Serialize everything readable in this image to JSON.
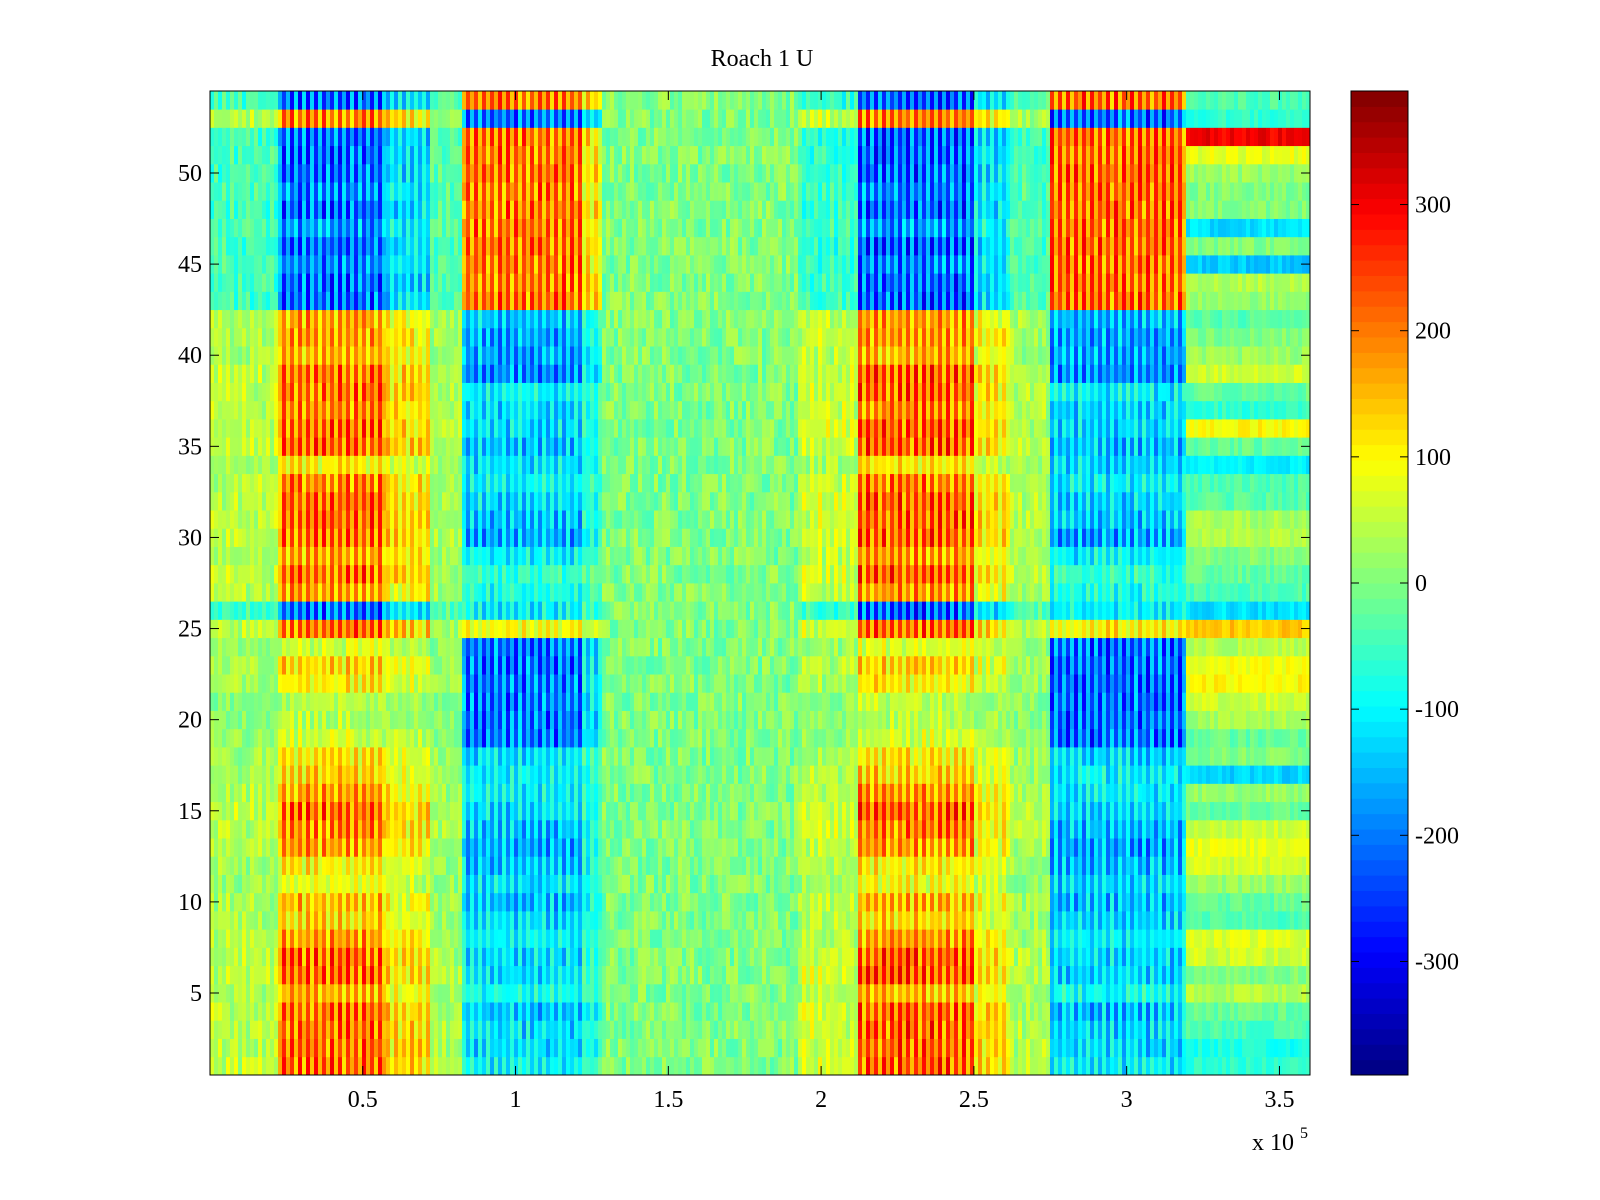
{
  "chart_data": {
    "type": "heatmap",
    "title": "Roach 1 U",
    "xlabel": "",
    "ylabel": "",
    "x_exponent_label": "x 10",
    "x_exponent_power": "5",
    "xlim": [
      0,
      3.6
    ],
    "ylim": [
      0.5,
      54.5
    ],
    "x_ticks": [
      {
        "value": 0.5,
        "label": "0.5"
      },
      {
        "value": 1,
        "label": "1"
      },
      {
        "value": 1.5,
        "label": "1.5"
      },
      {
        "value": 2,
        "label": "2"
      },
      {
        "value": 2.5,
        "label": "2.5"
      },
      {
        "value": 3,
        "label": "3"
      },
      {
        "value": 3.5,
        "label": "3.5"
      }
    ],
    "y_ticks": [
      {
        "value": 5,
        "label": "5"
      },
      {
        "value": 10,
        "label": "10"
      },
      {
        "value": 15,
        "label": "15"
      },
      {
        "value": 20,
        "label": "20"
      },
      {
        "value": 25,
        "label": "25"
      },
      {
        "value": 30,
        "label": "30"
      },
      {
        "value": 35,
        "label": "35"
      },
      {
        "value": 40,
        "label": "40"
      },
      {
        "value": 45,
        "label": "45"
      },
      {
        "value": 50,
        "label": "50"
      }
    ],
    "colorbar": {
      "clim": [
        -390,
        390
      ],
      "colormap": "jet",
      "ticks": [
        {
          "value": 300,
          "label": "300"
        },
        {
          "value": 200,
          "label": "200"
        },
        {
          "value": 100,
          "label": "100"
        },
        {
          "value": 0,
          "label": "0"
        },
        {
          "value": -100,
          "label": "-100"
        },
        {
          "value": -200,
          "label": "-200"
        },
        {
          "value": -300,
          "label": "-300"
        }
      ]
    },
    "rows": 54,
    "column_bands": [
      {
        "x_start": 0.0,
        "x_end": 0.22,
        "peak": 60,
        "pattern": "A"
      },
      {
        "x_start": 0.22,
        "x_end": 0.58,
        "peak": 270,
        "pattern": "A"
      },
      {
        "x_start": 0.58,
        "x_end": 0.72,
        "peak": 160,
        "pattern": "A"
      },
      {
        "x_start": 0.72,
        "x_end": 0.82,
        "peak": 40,
        "pattern": "A"
      },
      {
        "x_start": 0.82,
        "x_end": 1.22,
        "peak": 260,
        "pattern": "B"
      },
      {
        "x_start": 1.22,
        "x_end": 1.28,
        "peak": 150,
        "pattern": "B"
      },
      {
        "x_start": 1.28,
        "x_end": 1.92,
        "peak": 0,
        "pattern": "N"
      },
      {
        "x_start": 1.92,
        "x_end": 2.12,
        "peak": 80,
        "pattern": "A"
      },
      {
        "x_start": 2.12,
        "x_end": 2.5,
        "peak": 280,
        "pattern": "A"
      },
      {
        "x_start": 2.5,
        "x_end": 2.62,
        "peak": 150,
        "pattern": "A"
      },
      {
        "x_start": 2.62,
        "x_end": 2.75,
        "peak": 50,
        "pattern": "A"
      },
      {
        "x_start": 2.75,
        "x_end": 3.2,
        "peak": 270,
        "pattern": "B"
      },
      {
        "x_start": 3.2,
        "x_end": 3.6,
        "peak": 0,
        "pattern": "S"
      }
    ],
    "row_patterns": {
      "A": [
        1,
        1,
        1,
        1,
        0.7,
        1,
        1,
        0.8,
        0.6,
        0.7,
        0.4,
        0.5,
        0.8,
        0.9,
        1,
        0.8,
        0.6,
        0.5,
        0.3,
        0.2,
        0.2,
        0.5,
        0.6,
        0.3,
        1,
        -1,
        0.8,
        1,
        0.8,
        1,
        1,
        1,
        0.9,
        0.5,
        1,
        1,
        0.9,
        1,
        1,
        0.7,
        0.8,
        0.8,
        -1,
        -1,
        -0.9,
        -1,
        -0.8,
        -1,
        -0.9,
        -1,
        -1,
        -1,
        0.9,
        -1
      ],
      "B": [
        -0.5,
        -0.6,
        -0.6,
        -0.7,
        -0.4,
        -0.6,
        -0.6,
        -0.5,
        -0.6,
        -0.7,
        -0.6,
        -0.7,
        -0.8,
        -0.7,
        -0.6,
        -0.5,
        -0.5,
        -0.6,
        -1,
        -1,
        -1,
        -1,
        -1,
        -1,
        0.5,
        -0.5,
        -0.4,
        -0.3,
        -0.5,
        -0.8,
        -0.7,
        -0.6,
        -0.5,
        -0.6,
        -0.7,
        -0.6,
        -0.6,
        -0.5,
        -0.9,
        -0.8,
        -0.8,
        -0.7,
        1,
        1,
        1,
        1,
        1,
        1,
        1,
        1,
        1,
        1,
        -1,
        1
      ],
      "S": [
        -60,
        -80,
        -40,
        -20,
        40,
        0,
        60,
        70,
        -40,
        -20,
        20,
        60,
        80,
        60,
        -20,
        20,
        -130,
        0,
        -20,
        30,
        60,
        100,
        90,
        40,
        140,
        -120,
        -40,
        -20,
        0,
        40,
        30,
        -30,
        -40,
        -110,
        -20,
        100,
        -60,
        -20,
        60,
        20,
        0,
        -30,
        20,
        40,
        -140,
        0,
        -120,
        0,
        0,
        20,
        80,
        300,
        -60,
        -40
      ]
    }
  }
}
